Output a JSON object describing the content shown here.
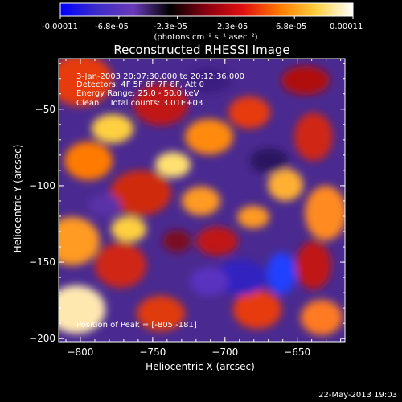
{
  "colorbar": {
    "tick_labels": [
      "-0.00011",
      "-6.8e-05",
      "-2.3e-05",
      "2.3e-05",
      "6.8e-05",
      "0.00011"
    ],
    "units": "(photons cm⁻² s⁻¹ asec⁻²)",
    "colormap": [
      "#0000ff",
      "#3c2cc8",
      "#6a3ab8",
      "#000000",
      "#8a0010",
      "#e01010",
      "#ff7a00",
      "#ffd040",
      "#ffffff"
    ]
  },
  "chart_data": {
    "type": "heatmap",
    "title": "Reconstructed RHESSI Image",
    "xlabel": "Heliocentric X (arcsec)",
    "ylabel": "Heliocentric Y (arcsec)",
    "xlim": [
      -815,
      -617
    ],
    "ylim": [
      -202,
      -17
    ],
    "xticks": [
      -800,
      -750,
      -700,
      -650
    ],
    "yticks": [
      -50,
      -100,
      -150,
      -200
    ],
    "xtick_labels": [
      "−800",
      "−750",
      "−700",
      "−650"
    ],
    "ytick_labels": [
      "−50",
      "−100",
      "−150",
      "−200"
    ],
    "annotations": {
      "time": "3-Jan-2003 20:07:30.000 to 20:12:36.000",
      "detectors": "Detectors: 4F 5F 6F 7F 8F, Att 0",
      "energy": "Energy Range: 25.0 - 50.0 keV",
      "clean": "Clean    Total counts: 3.01E+03",
      "peak": "Position of Peak = [-805,-181]"
    },
    "peak": {
      "x": -805,
      "y": -181
    }
  },
  "footer": {
    "timestamp": "22-May-2013 19:03"
  }
}
